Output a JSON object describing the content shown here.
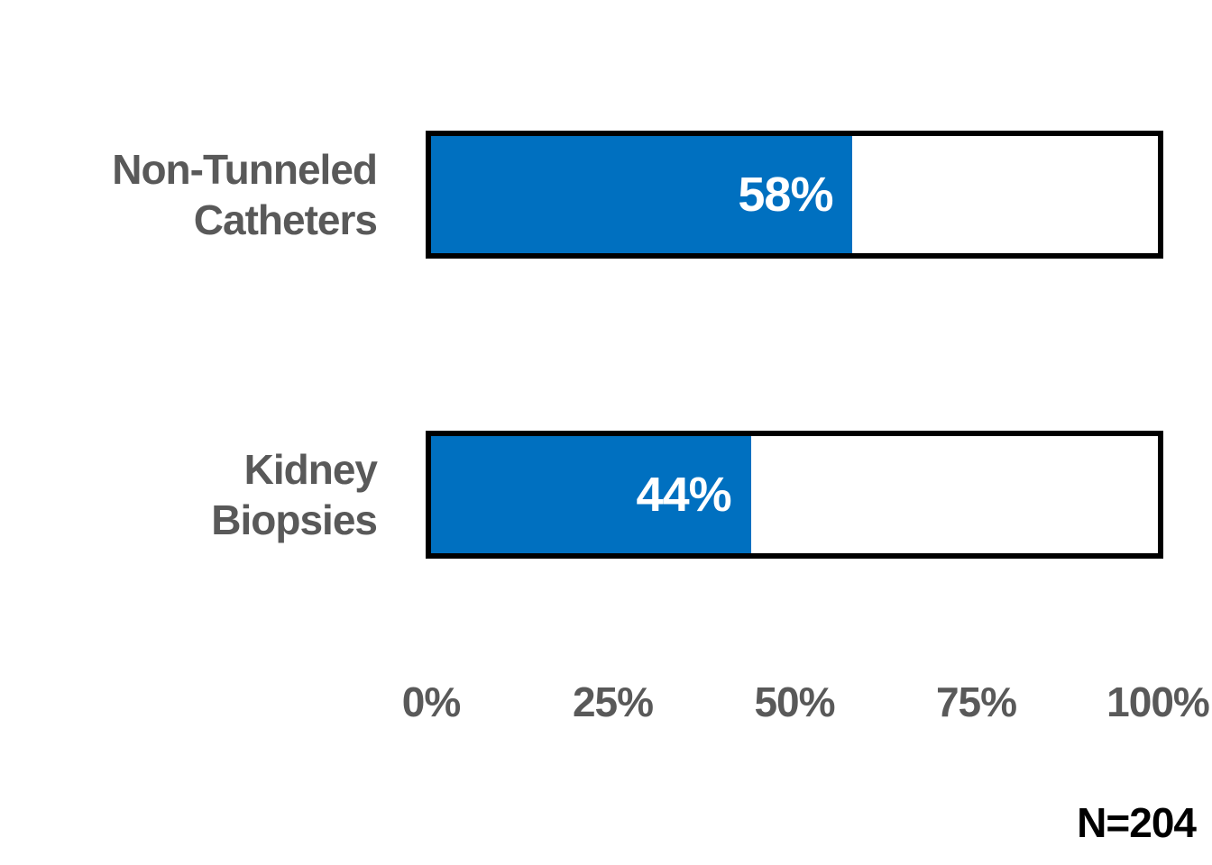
{
  "chart_data": {
    "type": "bar",
    "orientation": "horizontal",
    "title": "",
    "xlabel": "",
    "ylabel": "",
    "xlim": [
      0,
      100
    ],
    "grid": false,
    "legend": false,
    "categories": [
      "Non-Tunneled Catheters",
      "Kidney Biopsies"
    ],
    "values": [
      58,
      44
    ],
    "bars": [
      {
        "label_lines": [
          "Non-Tunneled",
          "Catheters"
        ],
        "value": 58,
        "value_label": "58%"
      },
      {
        "label_lines": [
          "Kidney",
          "Biopsies"
        ],
        "value": 44,
        "value_label": "44%"
      }
    ],
    "x_tick_values": [
      0,
      25,
      50,
      75,
      100
    ],
    "x_tick_labels": [
      "0%",
      "25%",
      "50%",
      "75%",
      "100%"
    ],
    "annotation": "N=204"
  },
  "colors": {
    "bar-blue": "#0070C0",
    "border-black": "#000000",
    "label-gray": "#595959",
    "text-black": "#000000",
    "track-white": "#FFFFFF"
  }
}
